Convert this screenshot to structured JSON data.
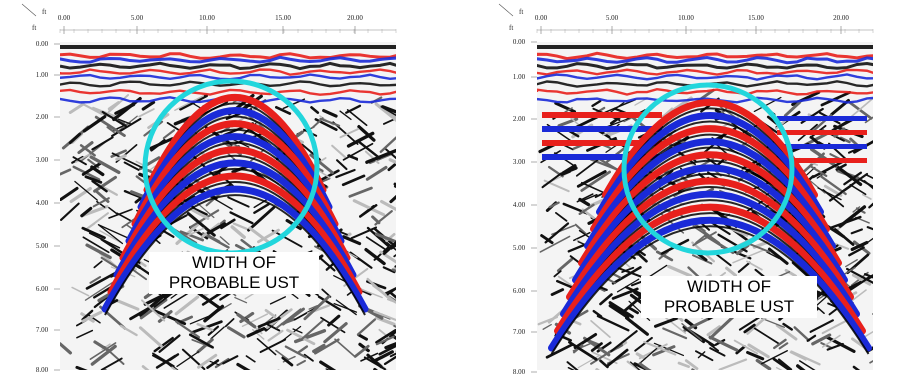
{
  "panels": [
    {
      "id": "left",
      "unit_label": "ft",
      "x_ticks": [
        "0.00",
        "5.00",
        "10.00",
        "15.00",
        "20.00"
      ],
      "y_ticks": [
        "0.00",
        "1.00",
        "2.00",
        "3.00",
        "4.00",
        "5.00",
        "6.00",
        "7.00",
        "8.00"
      ],
      "callout_lines": [
        "WIDTH OF",
        "PROBABLE UST"
      ]
    },
    {
      "id": "right",
      "unit_label": "ft",
      "x_ticks": [
        "0.00",
        "5.00",
        "10.00",
        "15.00",
        "20.00"
      ],
      "y_ticks": [
        "0.00",
        "1.00",
        "2.00",
        "3.00",
        "4.00",
        "5.00",
        "6.00",
        "7.00",
        "8.00"
      ],
      "callout_lines": [
        "WIDTH OF",
        "PROBABLE UST"
      ]
    }
  ],
  "colors": {
    "circle": "#22d6dc",
    "positive_reflection": "#e8201c",
    "negative_reflection": "#1a2ad8",
    "background": "#ffffff"
  }
}
